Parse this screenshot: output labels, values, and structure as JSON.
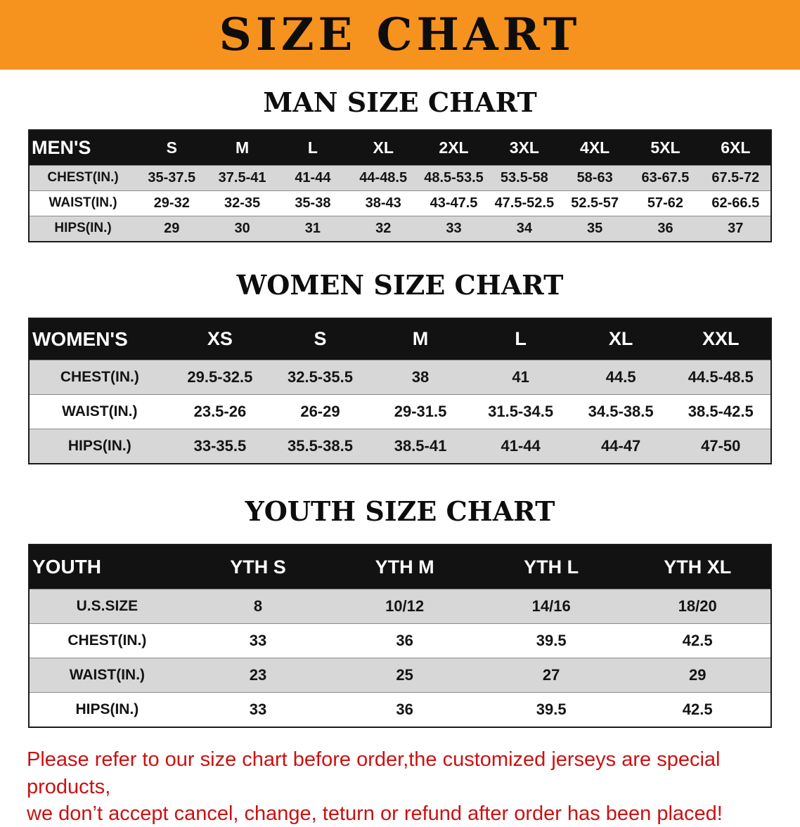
{
  "banner": {
    "title": "SIZE CHART",
    "bg_color": "#F6921E",
    "text_color": "#0d0d0d"
  },
  "sections": [
    {
      "heading": "MAN SIZE CHART",
      "table": {
        "header": [
          "MEN'S",
          "S",
          "M",
          "L",
          "XL",
          "2XL",
          "3XL",
          "4XL",
          "5XL",
          "6XL"
        ],
        "rows": [
          [
            "CHEST(IN.)",
            "35-37.5",
            "37.5-41",
            "41-44",
            "44-48.5",
            "48.5-53.5",
            "53.5-58",
            "58-63",
            "63-67.5",
            "67.5-72"
          ],
          [
            "WAIST(IN.)",
            "29-32",
            "32-35",
            "35-38",
            "38-43",
            "43-47.5",
            "47.5-52.5",
            "52.5-57",
            "57-62",
            "62-66.5"
          ],
          [
            "HIPS(IN.)",
            "29",
            "30",
            "31",
            "32",
            "33",
            "34",
            "35",
            "36",
            "37"
          ]
        ]
      }
    },
    {
      "heading": "WOMEN SIZE CHART",
      "table": {
        "header": [
          "WOMEN'S",
          "XS",
          "S",
          "M",
          "L",
          "XL",
          "XXL"
        ],
        "rows": [
          [
            "CHEST(IN.)",
            "29.5-32.5",
            "32.5-35.5",
            "38",
            "41",
            "44.5",
            "44.5-48.5"
          ],
          [
            "WAIST(IN.)",
            "23.5-26",
            "26-29",
            "29-31.5",
            "31.5-34.5",
            "34.5-38.5",
            "38.5-42.5"
          ],
          [
            "HIPS(IN.)",
            "33-35.5",
            "35.5-38.5",
            "38.5-41",
            "41-44",
            "44-47",
            "47-50"
          ]
        ]
      }
    },
    {
      "heading": "YOUTH SIZE CHART",
      "table": {
        "header": [
          "YOUTH",
          "YTH S",
          "YTH M",
          "YTH L",
          "YTH XL"
        ],
        "rows": [
          [
            "U.S.SIZE",
            "8",
            "10/12",
            "14/16",
            "18/20"
          ],
          [
            "CHEST(IN.)",
            "33",
            "36",
            "39.5",
            "42.5"
          ],
          [
            "WAIST(IN.)",
            "23",
            "25",
            "27",
            "29"
          ],
          [
            "HIPS(IN.)",
            "33",
            "36",
            "39.5",
            "42.5"
          ]
        ]
      }
    }
  ],
  "footer": {
    "line1": "Please refer to our size chart before order,the customized jerseys are special products,",
    "line2": "we don’t accept cancel, change, teturn or refund after order has been placed!",
    "text_color": "#cc1111"
  }
}
